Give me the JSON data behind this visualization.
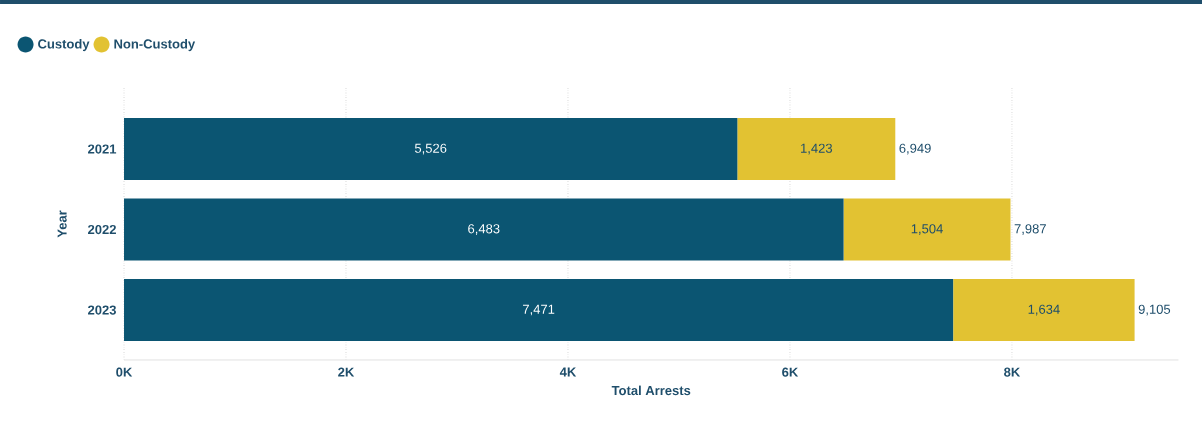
{
  "chart_data": {
    "type": "bar",
    "orientation": "horizontal",
    "stacked": true,
    "categories": [
      "2021",
      "2022",
      "2023"
    ],
    "series": [
      {
        "name": "Custody",
        "color": "#0b5572",
        "values": [
          5526,
          6483,
          7471
        ],
        "value_labels": [
          "5,526",
          "6,483",
          "7,471"
        ]
      },
      {
        "name": "Non-Custody",
        "color": "#e2c232",
        "values": [
          1423,
          1504,
          1634
        ],
        "value_labels": [
          "1,423",
          "1,504",
          "1,634"
        ]
      }
    ],
    "totals": [
      "6,949",
      "7,987",
      "9,105"
    ],
    "xlim": [
      0,
      9500
    ],
    "xticks": [
      {
        "value": 0,
        "label": "0K"
      },
      {
        "value": 2000,
        "label": "2K"
      },
      {
        "value": 4000,
        "label": "4K"
      },
      {
        "value": 6000,
        "label": "6K"
      },
      {
        "value": 8000,
        "label": "8K"
      }
    ],
    "xlabel": "Total Arrests",
    "ylabel": "Year",
    "grid": "x",
    "legend": "top left"
  }
}
